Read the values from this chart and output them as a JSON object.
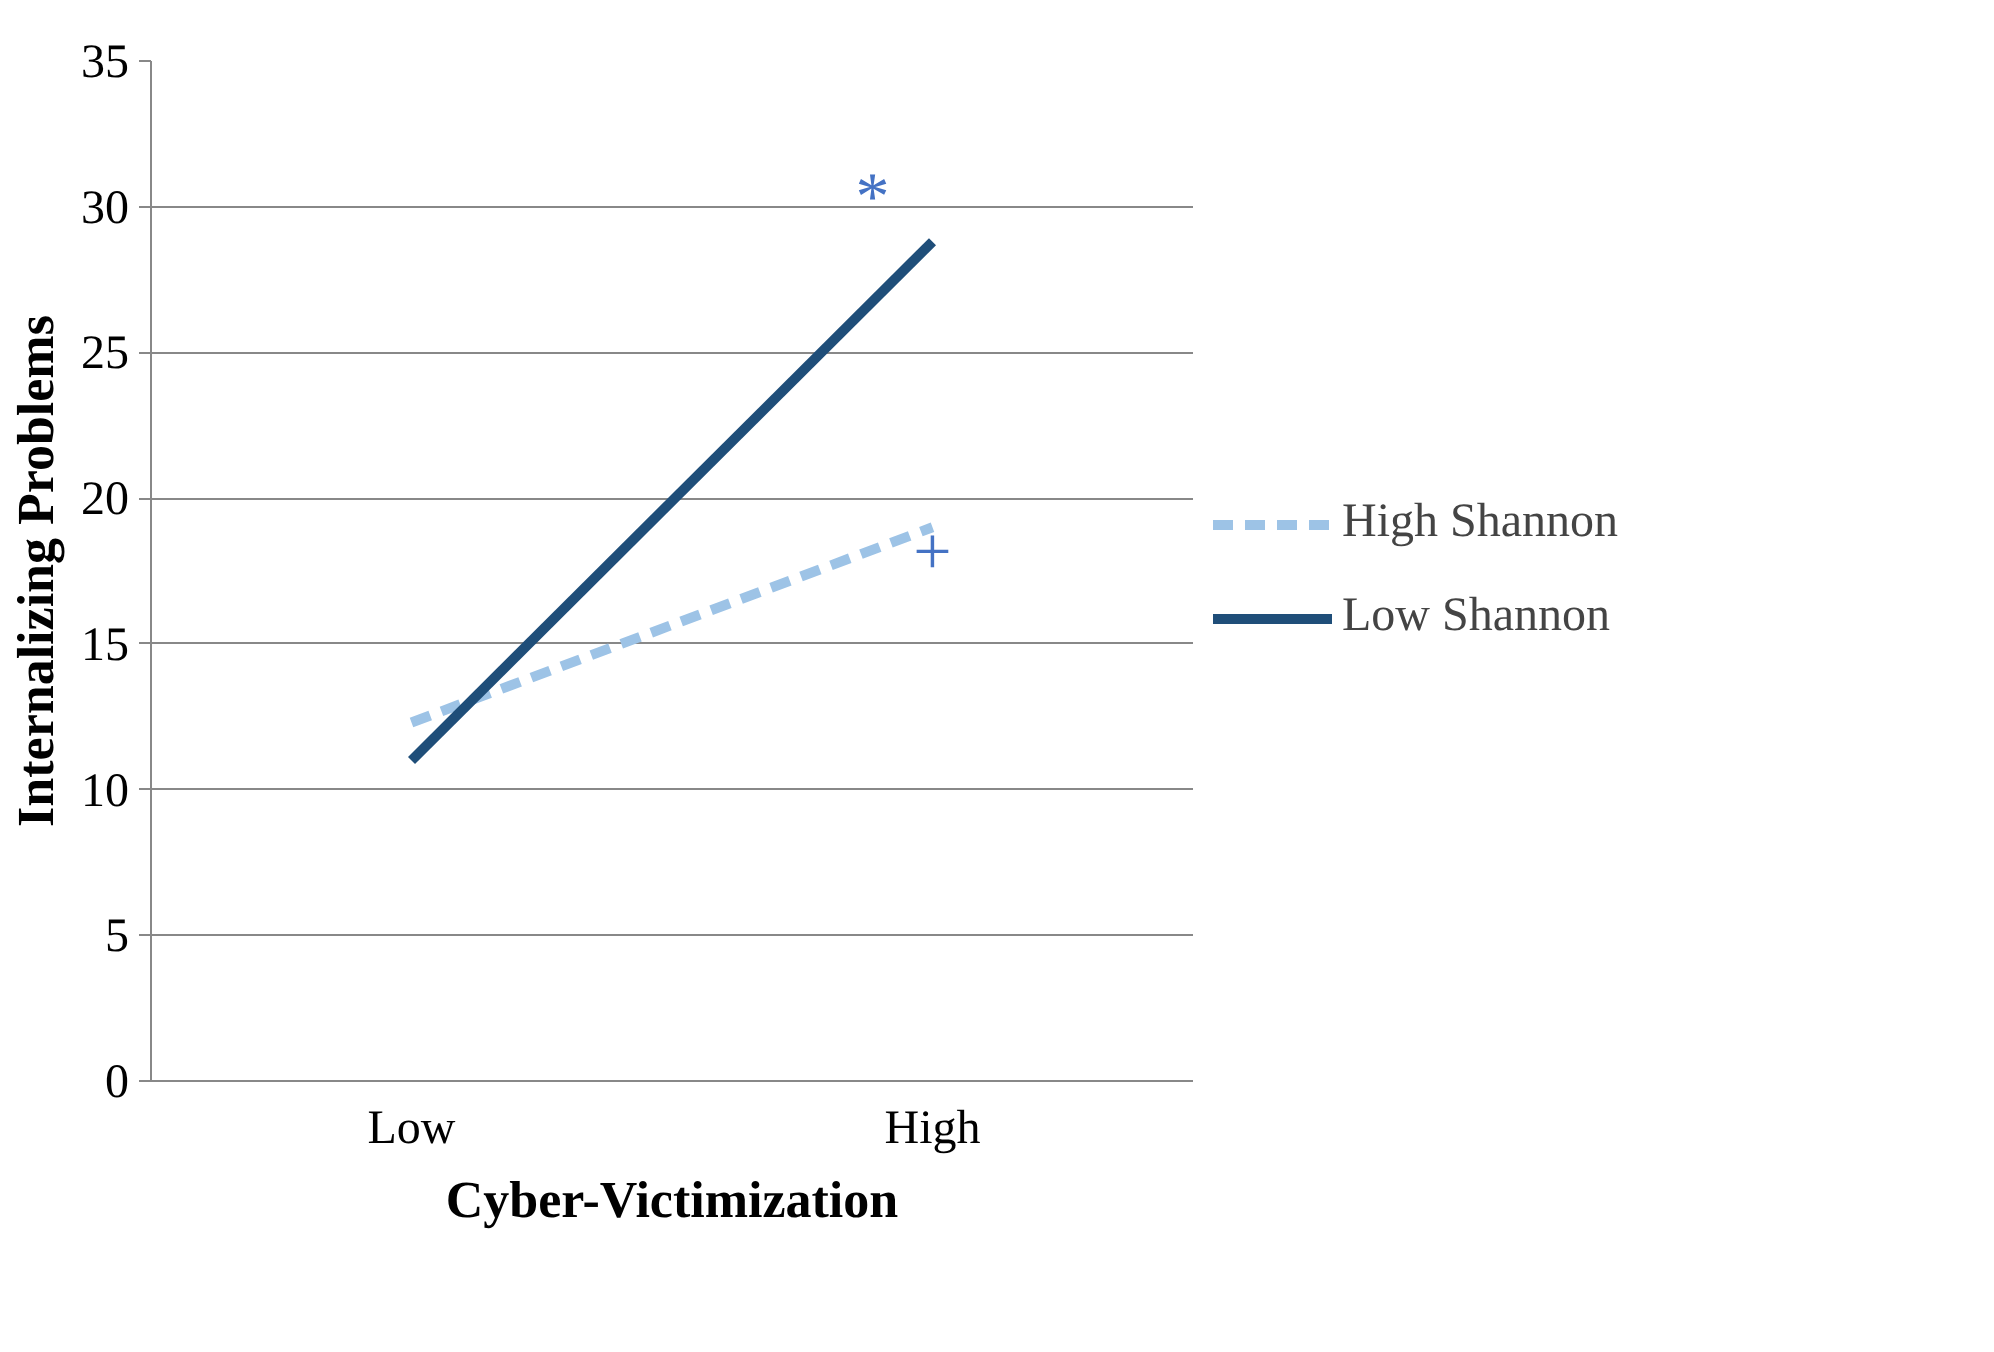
{
  "chart_data": {
    "type": "line",
    "xlabel": "Cyber-Victimization",
    "ylabel": "Internalizing Problems",
    "categories": [
      "Low",
      "High"
    ],
    "series": [
      {
        "name": "High Shannon",
        "color": "#9dc3e6",
        "values": [
          12.3,
          19.0
        ],
        "line_style": "dashed"
      },
      {
        "name": "Low Shannon",
        "color": "#1f4e79",
        "values": [
          11.0,
          28.8
        ],
        "line_style": "solid"
      }
    ],
    "ylim": [
      0,
      35
    ],
    "yticks": [
      0,
      5,
      10,
      15,
      20,
      25,
      30,
      35
    ],
    "grid": "y",
    "legend": "right",
    "marker": "none",
    "annotations": [
      "*",
      "+"
    ]
  }
}
